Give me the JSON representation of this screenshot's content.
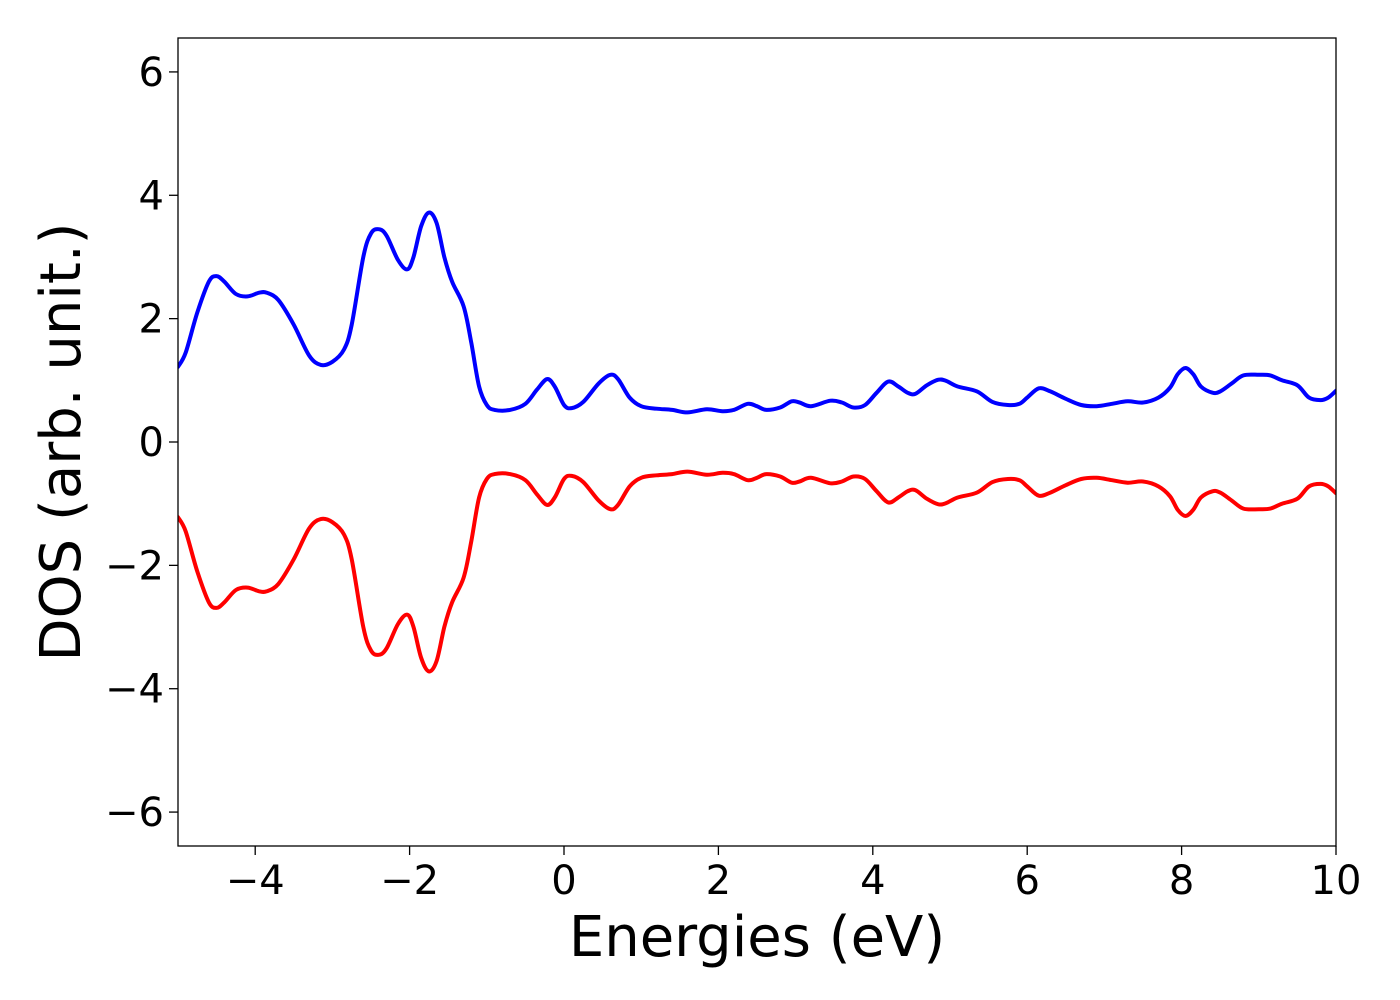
{
  "chart_data": {
    "type": "line",
    "title": "",
    "xlabel": "Energies (eV)",
    "ylabel": "DOS (arb. unit.)",
    "xlim": [
      -5,
      10
    ],
    "ylim": [
      -6.55,
      6.55
    ],
    "xticks": [
      {
        "value": -4,
        "label": "−4"
      },
      {
        "value": -2,
        "label": "−2"
      },
      {
        "value": 0,
        "label": "0"
      },
      {
        "value": 2,
        "label": "2"
      },
      {
        "value": 4,
        "label": "4"
      },
      {
        "value": 6,
        "label": "6"
      },
      {
        "value": 8,
        "label": "8"
      },
      {
        "value": 10,
        "label": "10"
      }
    ],
    "yticks": [
      {
        "value": 6,
        "label": "6"
      },
      {
        "value": 4,
        "label": "4"
      },
      {
        "value": 2,
        "label": "2"
      },
      {
        "value": 0,
        "label": "0"
      },
      {
        "value": -2,
        "label": "−2"
      },
      {
        "value": -4,
        "label": "−4"
      },
      {
        "value": -6,
        "label": "−6"
      }
    ],
    "grid": false,
    "legend": "none",
    "series": [
      {
        "color": "#0000ff",
        "points": [
          [
            -5.0,
            1.22
          ],
          [
            -4.9,
            1.45
          ],
          [
            -4.75,
            2.1
          ],
          [
            -4.6,
            2.6
          ],
          [
            -4.5,
            2.69
          ],
          [
            -4.4,
            2.6
          ],
          [
            -4.25,
            2.4
          ],
          [
            -4.1,
            2.36
          ],
          [
            -3.95,
            2.42
          ],
          [
            -3.85,
            2.42
          ],
          [
            -3.7,
            2.3
          ],
          [
            -3.5,
            1.9
          ],
          [
            -3.3,
            1.4
          ],
          [
            -3.15,
            1.25
          ],
          [
            -3.0,
            1.3
          ],
          [
            -2.85,
            1.5
          ],
          [
            -2.75,
            1.9
          ],
          [
            -2.6,
            3.0
          ],
          [
            -2.5,
            3.38
          ],
          [
            -2.4,
            3.45
          ],
          [
            -2.3,
            3.35
          ],
          [
            -2.15,
            2.95
          ],
          [
            -2.03,
            2.8
          ],
          [
            -1.95,
            3.0
          ],
          [
            -1.85,
            3.5
          ],
          [
            -1.75,
            3.72
          ],
          [
            -1.65,
            3.55
          ],
          [
            -1.55,
            3.0
          ],
          [
            -1.45,
            2.6
          ],
          [
            -1.3,
            2.2
          ],
          [
            -1.2,
            1.6
          ],
          [
            -1.1,
            0.9
          ],
          [
            -1.0,
            0.6
          ],
          [
            -0.9,
            0.52
          ],
          [
            -0.7,
            0.52
          ],
          [
            -0.5,
            0.62
          ],
          [
            -0.35,
            0.85
          ],
          [
            -0.22,
            1.02
          ],
          [
            -0.12,
            0.9
          ],
          [
            0.0,
            0.6
          ],
          [
            0.1,
            0.55
          ],
          [
            0.25,
            0.65
          ],
          [
            0.45,
            0.95
          ],
          [
            0.6,
            1.09
          ],
          [
            0.7,
            1.02
          ],
          [
            0.85,
            0.72
          ],
          [
            1.0,
            0.58
          ],
          [
            1.2,
            0.54
          ],
          [
            1.4,
            0.52
          ],
          [
            1.6,
            0.48
          ],
          [
            1.85,
            0.53
          ],
          [
            2.05,
            0.5
          ],
          [
            2.2,
            0.52
          ],
          [
            2.38,
            0.62
          ],
          [
            2.5,
            0.58
          ],
          [
            2.62,
            0.52
          ],
          [
            2.8,
            0.56
          ],
          [
            2.95,
            0.66
          ],
          [
            3.05,
            0.64
          ],
          [
            3.2,
            0.58
          ],
          [
            3.45,
            0.67
          ],
          [
            3.6,
            0.64
          ],
          [
            3.75,
            0.56
          ],
          [
            3.9,
            0.6
          ],
          [
            4.05,
            0.8
          ],
          [
            4.2,
            0.98
          ],
          [
            4.33,
            0.9
          ],
          [
            4.45,
            0.8
          ],
          [
            4.55,
            0.78
          ],
          [
            4.7,
            0.92
          ],
          [
            4.85,
            1.01
          ],
          [
            4.95,
            0.99
          ],
          [
            5.1,
            0.9
          ],
          [
            5.35,
            0.82
          ],
          [
            5.55,
            0.65
          ],
          [
            5.75,
            0.6
          ],
          [
            5.9,
            0.62
          ],
          [
            6.0,
            0.72
          ],
          [
            6.15,
            0.87
          ],
          [
            6.3,
            0.82
          ],
          [
            6.5,
            0.7
          ],
          [
            6.7,
            0.6
          ],
          [
            6.9,
            0.58
          ],
          [
            7.1,
            0.62
          ],
          [
            7.3,
            0.66
          ],
          [
            7.5,
            0.64
          ],
          [
            7.7,
            0.72
          ],
          [
            7.85,
            0.88
          ],
          [
            7.95,
            1.1
          ],
          [
            8.05,
            1.2
          ],
          [
            8.15,
            1.1
          ],
          [
            8.25,
            0.9
          ],
          [
            8.4,
            0.8
          ],
          [
            8.5,
            0.82
          ],
          [
            8.65,
            0.95
          ],
          [
            8.8,
            1.08
          ],
          [
            9.0,
            1.09
          ],
          [
            9.15,
            1.08
          ],
          [
            9.3,
            1.0
          ],
          [
            9.5,
            0.92
          ],
          [
            9.65,
            0.72
          ],
          [
            9.8,
            0.68
          ],
          [
            9.9,
            0.72
          ],
          [
            10.0,
            0.83
          ]
        ]
      },
      {
        "color": "#ff0000",
        "points": [
          [
            -5.0,
            -1.22
          ],
          [
            -4.9,
            -1.45
          ],
          [
            -4.75,
            -2.1
          ],
          [
            -4.6,
            -2.6
          ],
          [
            -4.5,
            -2.69
          ],
          [
            -4.4,
            -2.6
          ],
          [
            -4.25,
            -2.4
          ],
          [
            -4.1,
            -2.36
          ],
          [
            -3.95,
            -2.42
          ],
          [
            -3.85,
            -2.42
          ],
          [
            -3.7,
            -2.3
          ],
          [
            -3.5,
            -1.9
          ],
          [
            -3.3,
            -1.4
          ],
          [
            -3.15,
            -1.25
          ],
          [
            -3.0,
            -1.3
          ],
          [
            -2.85,
            -1.5
          ],
          [
            -2.75,
            -1.9
          ],
          [
            -2.6,
            -3.0
          ],
          [
            -2.5,
            -3.38
          ],
          [
            -2.4,
            -3.45
          ],
          [
            -2.3,
            -3.35
          ],
          [
            -2.15,
            -2.95
          ],
          [
            -2.03,
            -2.8
          ],
          [
            -1.95,
            -3.0
          ],
          [
            -1.85,
            -3.5
          ],
          [
            -1.75,
            -3.72
          ],
          [
            -1.65,
            -3.55
          ],
          [
            -1.55,
            -3.0
          ],
          [
            -1.45,
            -2.6
          ],
          [
            -1.3,
            -2.2
          ],
          [
            -1.2,
            -1.6
          ],
          [
            -1.1,
            -0.9
          ],
          [
            -1.0,
            -0.6
          ],
          [
            -0.9,
            -0.52
          ],
          [
            -0.7,
            -0.52
          ],
          [
            -0.5,
            -0.62
          ],
          [
            -0.35,
            -0.85
          ],
          [
            -0.22,
            -1.02
          ],
          [
            -0.12,
            -0.9
          ],
          [
            0.0,
            -0.6
          ],
          [
            0.1,
            -0.55
          ],
          [
            0.25,
            -0.65
          ],
          [
            0.45,
            -0.95
          ],
          [
            0.6,
            -1.09
          ],
          [
            0.7,
            -1.02
          ],
          [
            0.85,
            -0.72
          ],
          [
            1.0,
            -0.58
          ],
          [
            1.2,
            -0.54
          ],
          [
            1.4,
            -0.52
          ],
          [
            1.6,
            -0.48
          ],
          [
            1.85,
            -0.53
          ],
          [
            2.05,
            -0.5
          ],
          [
            2.2,
            -0.52
          ],
          [
            2.38,
            -0.62
          ],
          [
            2.5,
            -0.58
          ],
          [
            2.62,
            -0.52
          ],
          [
            2.8,
            -0.56
          ],
          [
            2.95,
            -0.66
          ],
          [
            3.05,
            -0.64
          ],
          [
            3.2,
            -0.58
          ],
          [
            3.45,
            -0.67
          ],
          [
            3.6,
            -0.64
          ],
          [
            3.75,
            -0.56
          ],
          [
            3.9,
            -0.6
          ],
          [
            4.05,
            -0.8
          ],
          [
            4.2,
            -0.98
          ],
          [
            4.33,
            -0.9
          ],
          [
            4.45,
            -0.8
          ],
          [
            4.55,
            -0.78
          ],
          [
            4.7,
            -0.92
          ],
          [
            4.85,
            -1.01
          ],
          [
            4.95,
            -0.99
          ],
          [
            5.1,
            -0.9
          ],
          [
            5.35,
            -0.82
          ],
          [
            5.55,
            -0.65
          ],
          [
            5.75,
            -0.6
          ],
          [
            5.9,
            -0.62
          ],
          [
            6.0,
            -0.72
          ],
          [
            6.15,
            -0.87
          ],
          [
            6.3,
            -0.82
          ],
          [
            6.5,
            -0.7
          ],
          [
            6.7,
            -0.6
          ],
          [
            6.9,
            -0.58
          ],
          [
            7.1,
            -0.62
          ],
          [
            7.3,
            -0.66
          ],
          [
            7.5,
            -0.64
          ],
          [
            7.7,
            -0.72
          ],
          [
            7.85,
            -0.88
          ],
          [
            7.95,
            -1.1
          ],
          [
            8.05,
            -1.2
          ],
          [
            8.15,
            -1.1
          ],
          [
            8.25,
            -0.9
          ],
          [
            8.4,
            -0.8
          ],
          [
            8.5,
            -0.82
          ],
          [
            8.65,
            -0.95
          ],
          [
            8.8,
            -1.08
          ],
          [
            9.0,
            -1.09
          ],
          [
            9.15,
            -1.08
          ],
          [
            9.3,
            -1.0
          ],
          [
            9.5,
            -0.92
          ],
          [
            9.65,
            -0.72
          ],
          [
            9.8,
            -0.68
          ],
          [
            9.9,
            -0.72
          ],
          [
            10.0,
            -0.83
          ]
        ]
      }
    ]
  }
}
